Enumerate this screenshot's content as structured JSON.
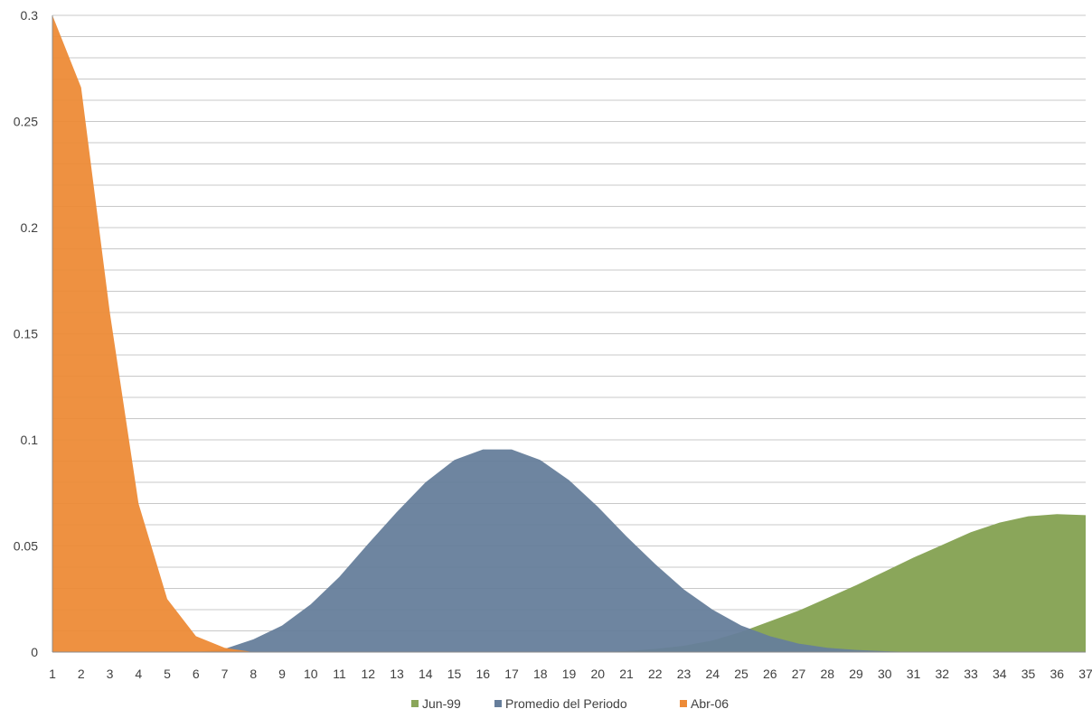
{
  "chart_data": {
    "type": "area",
    "title": "",
    "xlabel": "",
    "ylabel": "",
    "x": [
      1,
      2,
      3,
      4,
      5,
      6,
      7,
      8,
      9,
      10,
      11,
      12,
      13,
      14,
      15,
      16,
      17,
      18,
      19,
      20,
      21,
      22,
      23,
      24,
      25,
      26,
      27,
      28,
      29,
      30,
      31,
      32,
      33,
      34,
      35,
      36,
      37
    ],
    "x_tick_labels": [
      "1",
      "2",
      "3",
      "4",
      "5",
      "6",
      "7",
      "8",
      "9",
      "10",
      "11",
      "12",
      "13",
      "14",
      "15",
      "16",
      "17",
      "18",
      "19",
      "20",
      "21",
      "22",
      "23",
      "24",
      "25",
      "26",
      "27",
      "28",
      "29",
      "30",
      "31",
      "32",
      "33",
      "34",
      "35",
      "36",
      "37"
    ],
    "ylim": [
      0,
      0.3
    ],
    "y_ticks": [
      0,
      0.05,
      0.1,
      0.15,
      0.2,
      0.25,
      0.3
    ],
    "y_tick_labels": [
      "0",
      "0.05",
      "0.1",
      "0.15",
      "0.2",
      "0.25",
      "0.3"
    ],
    "grid": true,
    "legend_position": "bottom",
    "series": [
      {
        "name": "Jun-99",
        "color": "#8aa65a",
        "values": [
          0,
          0,
          0,
          0,
          0,
          0,
          0,
          0,
          0,
          0,
          0,
          0,
          0,
          0,
          0,
          0,
          0,
          0,
          0,
          0,
          0.0005,
          0.0015,
          0.003,
          0.0055,
          0.0095,
          0.0145,
          0.0195,
          0.0255,
          0.0315,
          0.038,
          0.0445,
          0.0505,
          0.0565,
          0.061,
          0.064,
          0.065,
          0.0645
        ]
      },
      {
        "name": "Promedio del Periodo",
        "color": "#667e9b",
        "values": [
          0,
          0,
          0,
          0,
          0,
          0,
          0.0015,
          0.006,
          0.0125,
          0.0225,
          0.0355,
          0.051,
          0.066,
          0.08,
          0.0905,
          0.0955,
          0.0955,
          0.0905,
          0.081,
          0.0685,
          0.0545,
          0.0415,
          0.0295,
          0.02,
          0.0125,
          0.0075,
          0.004,
          0.002,
          0.001,
          0.0004,
          0,
          0,
          0,
          0,
          0,
          0,
          0
        ]
      },
      {
        "name": "Abr-06",
        "color": "#ed8b37",
        "values": [
          0.3,
          0.266,
          0.16,
          0.07,
          0.025,
          0.0075,
          0.002,
          0,
          0,
          0,
          0,
          0,
          0,
          0,
          0,
          0,
          0,
          0,
          0,
          0,
          0,
          0,
          0,
          0,
          0,
          0,
          0,
          0,
          0,
          0,
          0,
          0,
          0,
          0,
          0,
          0,
          0
        ]
      }
    ]
  }
}
